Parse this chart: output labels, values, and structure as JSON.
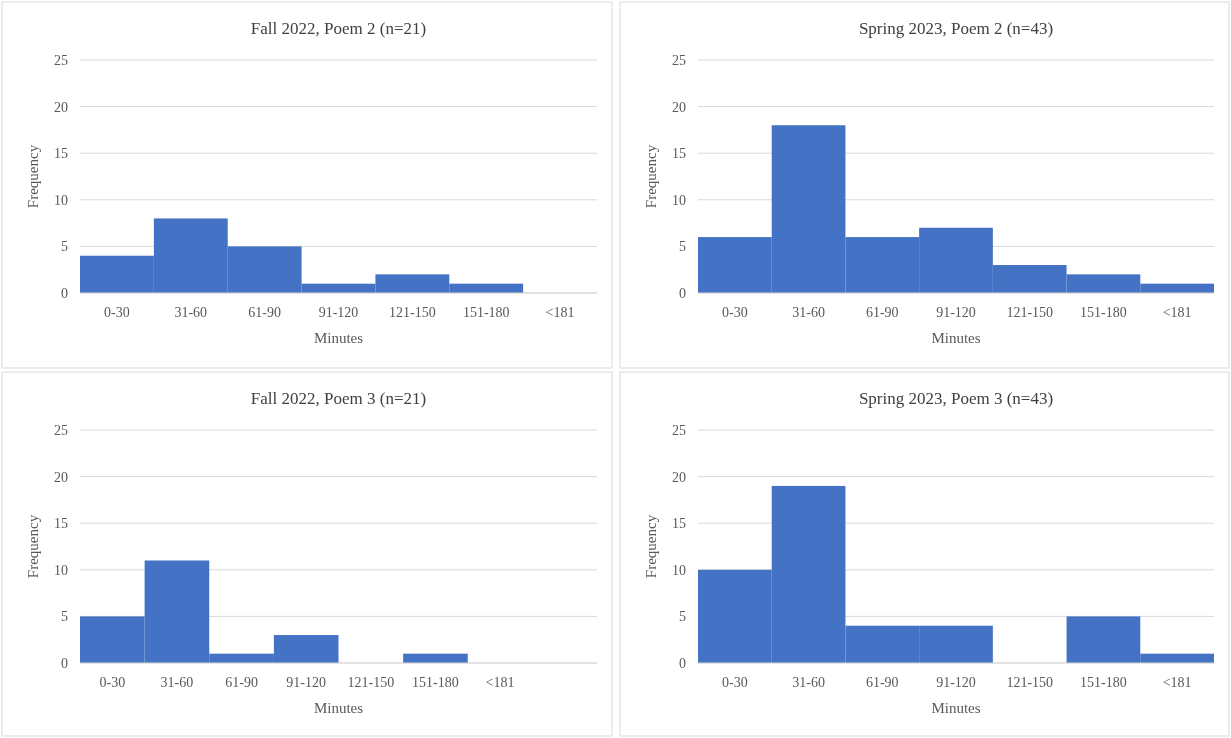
{
  "chart_data": [
    {
      "type": "bar",
      "title": "Fall 2022, Poem 2 (n=21)",
      "xlabel": "Minutes",
      "ylabel": "Frequency",
      "categories": [
        "0-30",
        "31-60",
        "61-90",
        "91-120",
        "121-150",
        "151-180",
        "<181"
      ],
      "values": [
        4,
        8,
        5,
        1,
        2,
        1,
        0
      ],
      "color": "#4472c4",
      "ylim": [
        0,
        25
      ],
      "yticks": [
        0,
        5,
        10,
        15,
        20,
        25
      ],
      "grid": "y"
    },
    {
      "type": "bar",
      "title": "Spring 2023, Poem 2 (n=43)",
      "xlabel": "Minutes",
      "ylabel": "Frequency",
      "categories": [
        "0-30",
        "31-60",
        "61-90",
        "91-120",
        "121-150",
        "151-180",
        "<181"
      ],
      "values": [
        6,
        18,
        6,
        7,
        3,
        2,
        1
      ],
      "color": "#4472c4",
      "ylim": [
        0,
        25
      ],
      "yticks": [
        0,
        5,
        10,
        15,
        20,
        25
      ],
      "grid": "y"
    },
    {
      "type": "bar",
      "title": "Fall 2022, Poem 3 (n=21)",
      "xlabel": "Minutes",
      "ylabel": "Frequency",
      "categories": [
        "0-30",
        "31-60",
        "61-90",
        "91-120",
        "121-150",
        "151-180",
        "<181",
        null
      ],
      "values": [
        5,
        11,
        1,
        3,
        0,
        1,
        0,
        0
      ],
      "color": "#4472c4",
      "ylim": [
        0,
        25
      ],
      "yticks": [
        0,
        5,
        10,
        15,
        20,
        25
      ],
      "grid": "y"
    },
    {
      "type": "bar",
      "title": "Spring 2023, Poem 3 (n=43)",
      "xlabel": "Minutes",
      "ylabel": "Frequency",
      "categories": [
        "0-30",
        "31-60",
        "61-90",
        "91-120",
        "121-150",
        "151-180",
        "<181"
      ],
      "values": [
        10,
        19,
        4,
        4,
        0,
        5,
        1
      ],
      "color": "#4472c4",
      "ylim": [
        0,
        25
      ],
      "yticks": [
        0,
        5,
        10,
        15,
        20,
        25
      ],
      "grid": "y"
    }
  ]
}
